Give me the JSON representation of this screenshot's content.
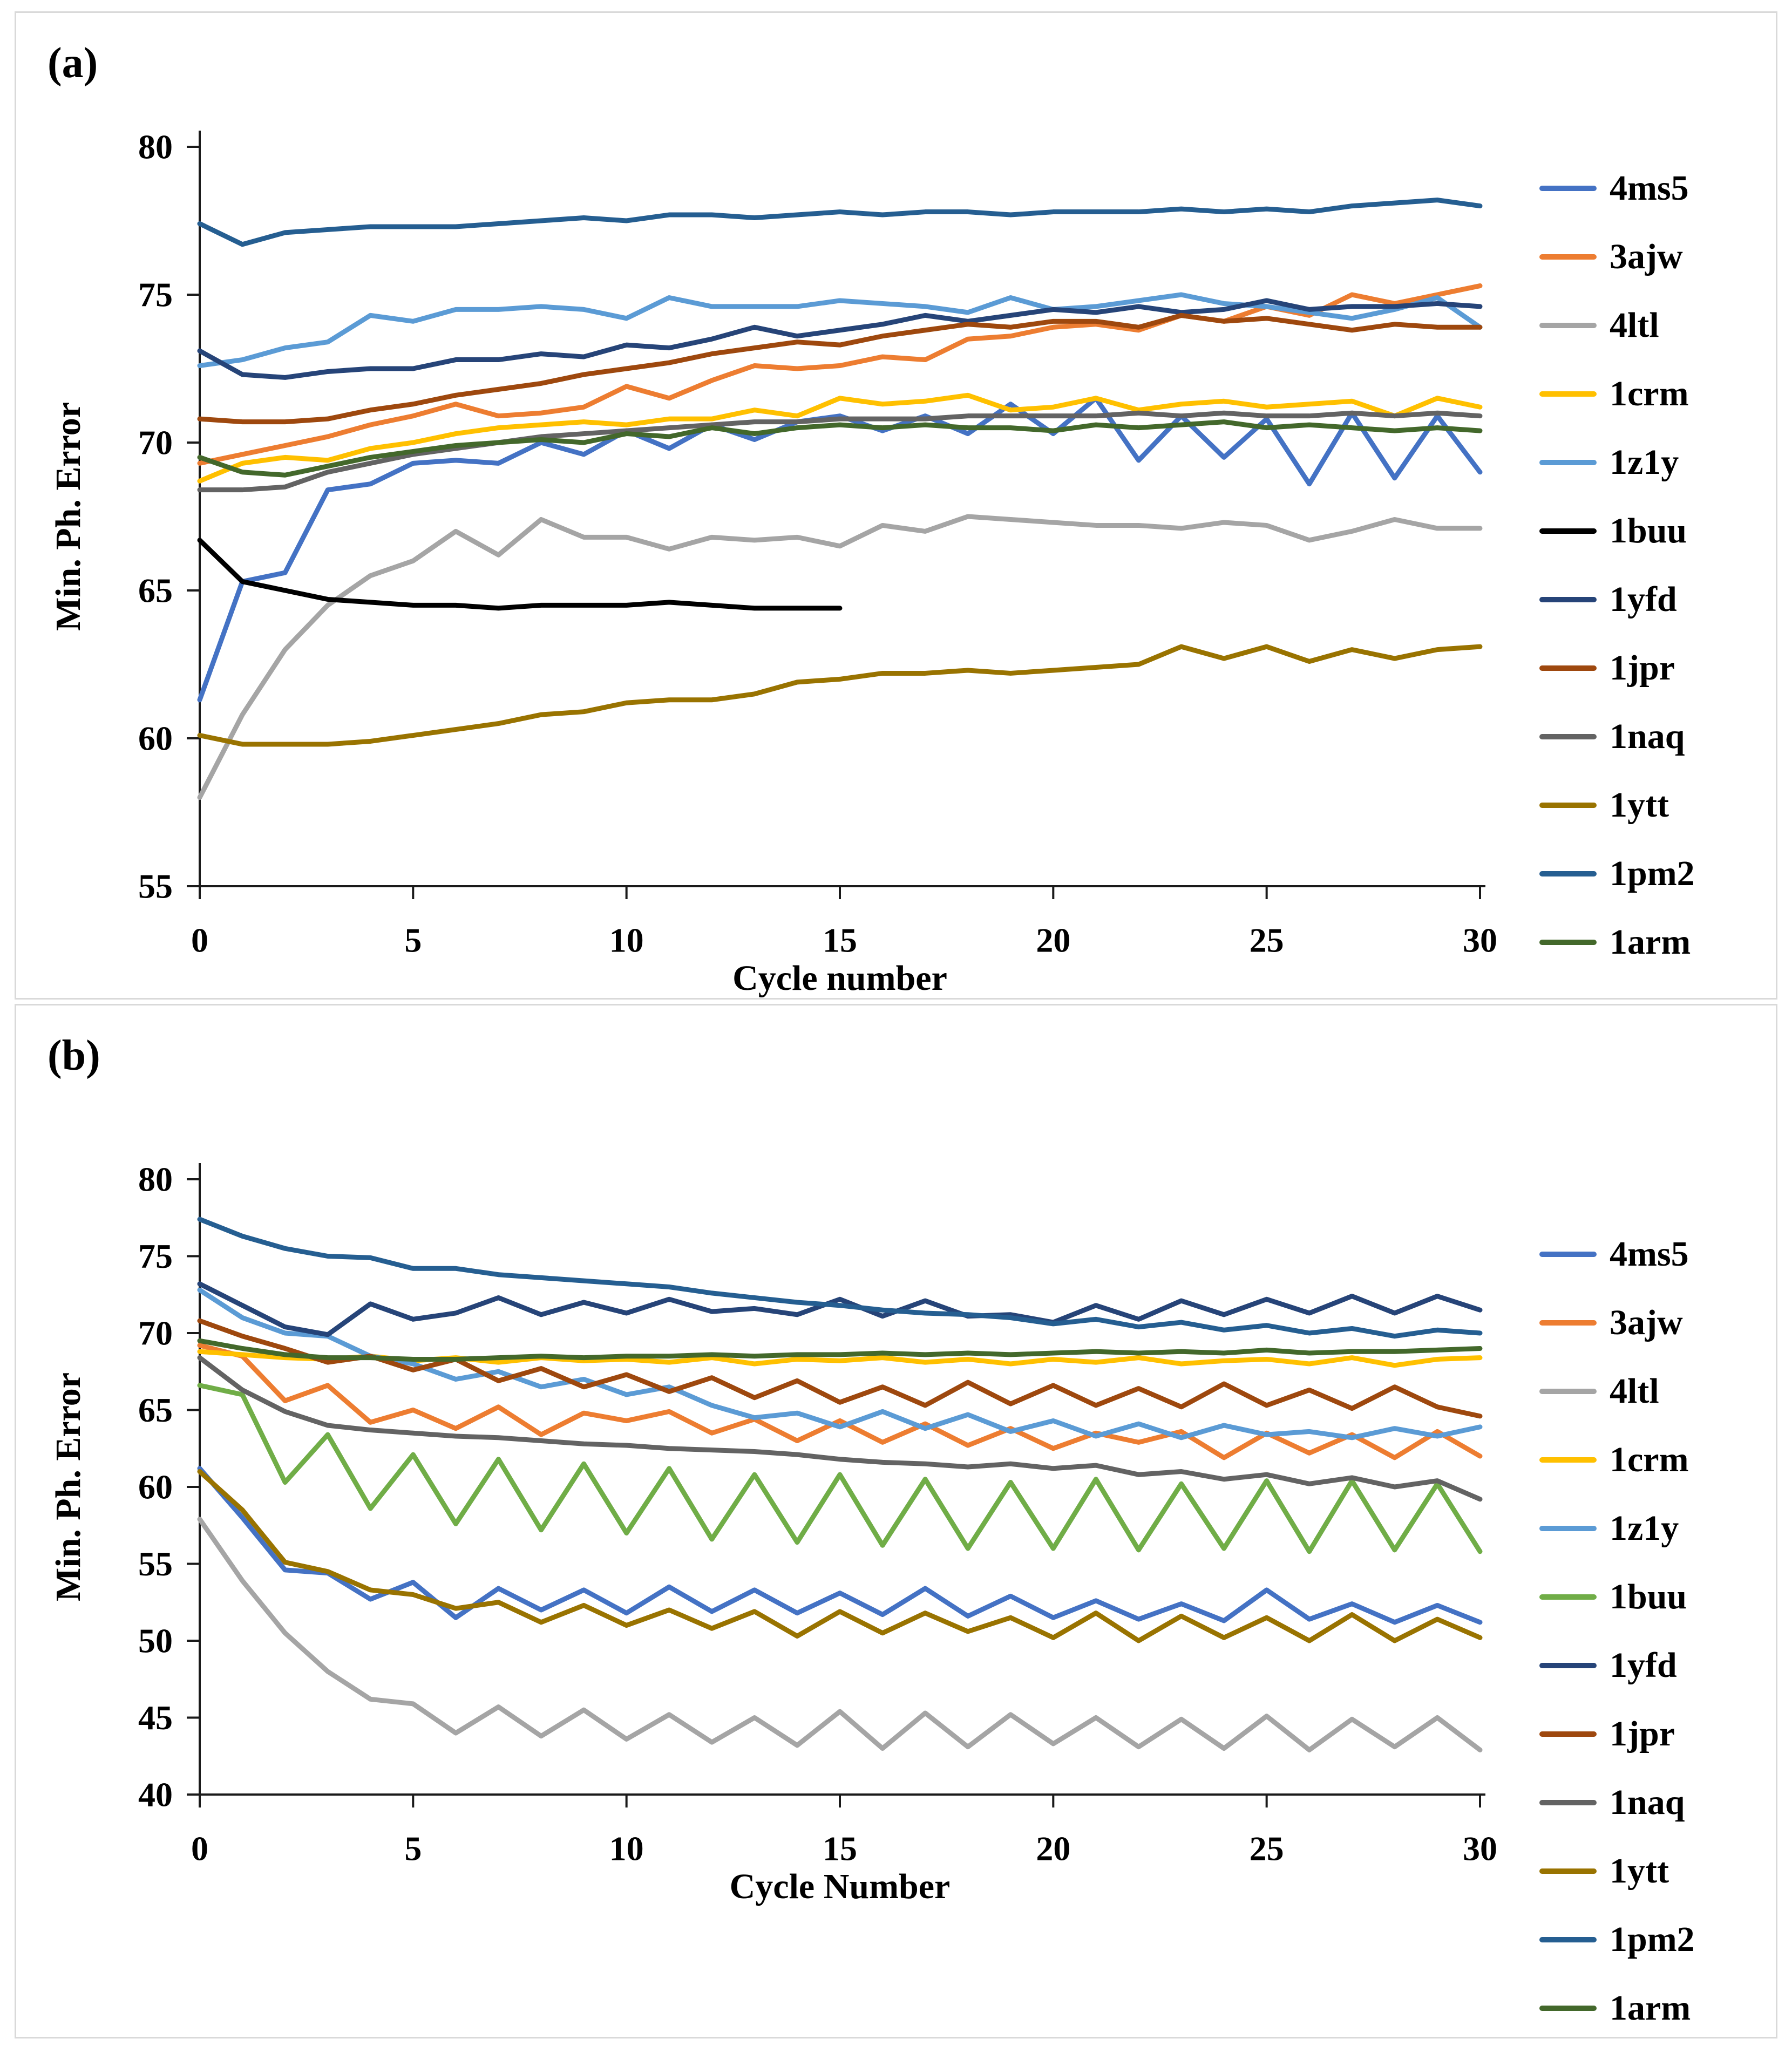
{
  "figure": {
    "background": "#ffffff",
    "panel_border_color": "#d9d9d9",
    "axis_color": "#1a1a1a"
  },
  "chart_data": [
    {
      "id": "a",
      "type": "line",
      "panel_label": "(a)",
      "title": "",
      "xlabel": "Cycle number",
      "ylabel": "Min. Ph. Error",
      "xlim": [
        0,
        30
      ],
      "ylim": [
        55,
        80
      ],
      "xticks": [
        0,
        5,
        10,
        15,
        20,
        25,
        30
      ],
      "yticks": [
        80,
        75,
        70,
        65,
        60,
        55
      ],
      "grid": false,
      "legend_position": "right",
      "x_step": 1,
      "series": [
        {
          "name": "4ms5",
          "color": "#4472C4",
          "values": [
            61.3,
            65.3,
            65.6,
            68.4,
            68.6,
            69.3,
            69.4,
            69.3,
            70.0,
            69.6,
            70.4,
            69.8,
            70.6,
            70.1,
            70.7,
            70.9,
            70.4,
            70.9,
            70.3,
            71.3,
            70.3,
            71.5,
            69.4,
            70.9,
            69.5,
            70.8,
            68.6,
            71.0,
            68.8,
            70.9,
            69.0
          ]
        },
        {
          "name": "3ajw",
          "color": "#ED7D31",
          "values": [
            69.3,
            69.6,
            69.9,
            70.2,
            70.6,
            70.9,
            71.3,
            70.9,
            71.0,
            71.2,
            71.9,
            71.5,
            72.1,
            72.6,
            72.5,
            72.6,
            72.9,
            72.8,
            73.5,
            73.6,
            73.9,
            74.0,
            73.8,
            74.3,
            74.1,
            74.6,
            74.3,
            75.0,
            74.7,
            75.0,
            75.3
          ]
        },
        {
          "name": "4ltl",
          "color": "#A5A5A5",
          "values": [
            58.0,
            60.8,
            63.0,
            64.5,
            65.5,
            66.0,
            67.0,
            66.2,
            67.4,
            66.8,
            66.8,
            66.4,
            66.8,
            66.7,
            66.8,
            66.5,
            67.2,
            67.0,
            67.5,
            67.4,
            67.3,
            67.2,
            67.2,
            67.1,
            67.3,
            67.2,
            66.7,
            67.0,
            67.4,
            67.1,
            67.1
          ]
        },
        {
          "name": "1crm",
          "color": "#FFC000",
          "values": [
            68.7,
            69.3,
            69.5,
            69.4,
            69.8,
            70.0,
            70.3,
            70.5,
            70.6,
            70.7,
            70.6,
            70.8,
            70.8,
            71.1,
            70.9,
            71.5,
            71.3,
            71.4,
            71.6,
            71.1,
            71.2,
            71.5,
            71.1,
            71.3,
            71.4,
            71.2,
            71.3,
            71.4,
            70.9,
            71.5,
            71.2
          ]
        },
        {
          "name": "1z1y",
          "color": "#5B9BD5",
          "values": [
            72.6,
            72.8,
            73.2,
            73.4,
            74.3,
            74.1,
            74.5,
            74.5,
            74.6,
            74.5,
            74.2,
            74.9,
            74.6,
            74.6,
            74.6,
            74.8,
            74.7,
            74.6,
            74.4,
            74.9,
            74.5,
            74.6,
            74.8,
            75.0,
            74.7,
            74.6,
            74.4,
            74.2,
            74.5,
            74.9,
            73.9
          ]
        },
        {
          "name": "1buu",
          "color": "#000000",
          "values": [
            66.7,
            65.3,
            65.0,
            64.7,
            64.6,
            64.5,
            64.5,
            64.4,
            64.5,
            64.5,
            64.5,
            64.6,
            64.5,
            64.4,
            64.4,
            64.4
          ]
        },
        {
          "name": "1yfd",
          "color": "#264478",
          "values": [
            73.1,
            72.3,
            72.2,
            72.4,
            72.5,
            72.5,
            72.8,
            72.8,
            73.0,
            72.9,
            73.3,
            73.2,
            73.5,
            73.9,
            73.6,
            73.8,
            74.0,
            74.3,
            74.1,
            74.3,
            74.5,
            74.4,
            74.6,
            74.4,
            74.5,
            74.8,
            74.5,
            74.6,
            74.6,
            74.7,
            74.6
          ]
        },
        {
          "name": "1jpr",
          "color": "#9E480E",
          "values": [
            70.8,
            70.7,
            70.7,
            70.8,
            71.1,
            71.3,
            71.6,
            71.8,
            72.0,
            72.3,
            72.5,
            72.7,
            73.0,
            73.2,
            73.4,
            73.3,
            73.6,
            73.8,
            74.0,
            73.9,
            74.1,
            74.1,
            73.9,
            74.3,
            74.1,
            74.2,
            74.0,
            73.8,
            74.0,
            73.9,
            73.9
          ]
        },
        {
          "name": "1naq",
          "color": "#636363",
          "values": [
            68.4,
            68.4,
            68.5,
            69.0,
            69.3,
            69.6,
            69.8,
            70.0,
            70.2,
            70.3,
            70.4,
            70.5,
            70.6,
            70.7,
            70.7,
            70.8,
            70.8,
            70.8,
            70.9,
            70.9,
            70.9,
            70.9,
            71.0,
            70.9,
            71.0,
            70.9,
            70.9,
            71.0,
            70.9,
            71.0,
            70.9
          ]
        },
        {
          "name": "1ytt",
          "color": "#997300",
          "values": [
            60.1,
            59.8,
            59.8,
            59.8,
            59.9,
            60.1,
            60.3,
            60.5,
            60.8,
            60.9,
            61.2,
            61.3,
            61.3,
            61.5,
            61.9,
            62.0,
            62.2,
            62.2,
            62.3,
            62.2,
            62.3,
            62.4,
            62.5,
            63.1,
            62.7,
            63.1,
            62.6,
            63.0,
            62.7,
            63.0,
            63.1
          ]
        },
        {
          "name": "1pm2",
          "color": "#255E91",
          "values": [
            77.4,
            76.7,
            77.1,
            77.2,
            77.3,
            77.3,
            77.3,
            77.4,
            77.5,
            77.6,
            77.5,
            77.7,
            77.7,
            77.6,
            77.7,
            77.8,
            77.7,
            77.8,
            77.8,
            77.7,
            77.8,
            77.8,
            77.8,
            77.9,
            77.8,
            77.9,
            77.8,
            78.0,
            78.1,
            78.2,
            78.0
          ]
        },
        {
          "name": "1arm",
          "color": "#43682B",
          "values": [
            69.5,
            69.0,
            68.9,
            69.2,
            69.5,
            69.7,
            69.9,
            70.0,
            70.1,
            70.0,
            70.3,
            70.2,
            70.5,
            70.3,
            70.5,
            70.6,
            70.5,
            70.6,
            70.5,
            70.5,
            70.4,
            70.6,
            70.5,
            70.6,
            70.7,
            70.5,
            70.6,
            70.5,
            70.4,
            70.5,
            70.4
          ]
        }
      ]
    },
    {
      "id": "b",
      "type": "line",
      "panel_label": "(b)",
      "title": "",
      "xlabel": "Cycle Number",
      "ylabel": "Min. Ph. Error",
      "xlim": [
        0,
        30
      ],
      "ylim": [
        40,
        80
      ],
      "xticks": [
        0,
        5,
        10,
        15,
        20,
        25,
        30
      ],
      "yticks": [
        80,
        75,
        70,
        65,
        60,
        55,
        50,
        45,
        40
      ],
      "grid": false,
      "legend_position": "right",
      "x_step": 1,
      "series": [
        {
          "name": "4ms5",
          "color": "#4472C4",
          "values": [
            61.2,
            58.0,
            54.6,
            54.4,
            52.7,
            53.8,
            51.5,
            53.4,
            52.0,
            53.3,
            51.8,
            53.5,
            51.9,
            53.3,
            51.8,
            53.1,
            51.7,
            53.4,
            51.6,
            52.9,
            51.5,
            52.6,
            51.4,
            52.4,
            51.3,
            53.3,
            51.4,
            52.4,
            51.2,
            52.3,
            51.2
          ]
        },
        {
          "name": "3ajw",
          "color": "#ED7D31",
          "values": [
            69.2,
            68.5,
            65.6,
            66.6,
            64.2,
            65.0,
            63.8,
            65.2,
            63.4,
            64.8,
            64.3,
            64.9,
            63.5,
            64.4,
            63.0,
            64.3,
            62.9,
            64.1,
            62.7,
            63.8,
            62.5,
            63.5,
            62.9,
            63.6,
            61.9,
            63.5,
            62.2,
            63.4,
            61.9,
            63.6,
            62.0
          ]
        },
        {
          "name": "4ltl",
          "color": "#A5A5A5",
          "values": [
            57.9,
            53.9,
            50.5,
            48.0,
            46.2,
            45.9,
            44.0,
            45.7,
            43.8,
            45.5,
            43.6,
            45.2,
            43.4,
            45.0,
            43.2,
            45.4,
            43.0,
            45.3,
            43.1,
            45.2,
            43.3,
            45.0,
            43.1,
            44.9,
            43.0,
            45.1,
            42.9,
            44.9,
            43.1,
            45.0,
            42.9
          ]
        },
        {
          "name": "1crm",
          "color": "#FFC000",
          "values": [
            68.8,
            68.6,
            68.4,
            68.3,
            68.5,
            68.2,
            68.4,
            68.1,
            68.4,
            68.2,
            68.3,
            68.1,
            68.4,
            68.0,
            68.3,
            68.2,
            68.4,
            68.1,
            68.3,
            68.0,
            68.3,
            68.1,
            68.4,
            68.0,
            68.2,
            68.3,
            68.0,
            68.4,
            67.9,
            68.3,
            68.4
          ]
        },
        {
          "name": "1z1y",
          "color": "#5B9BD5",
          "values": [
            72.8,
            71.0,
            70.0,
            69.8,
            68.5,
            68.0,
            67.0,
            67.5,
            66.5,
            67.0,
            66.0,
            66.5,
            65.3,
            64.5,
            64.8,
            63.9,
            64.9,
            63.8,
            64.7,
            63.6,
            64.3,
            63.3,
            64.1,
            63.2,
            64.0,
            63.4,
            63.6,
            63.2,
            63.8,
            63.3,
            63.9
          ]
        },
        {
          "name": "1buu",
          "color": "#70AD47",
          "values": [
            66.6,
            66.0,
            60.3,
            63.4,
            58.6,
            62.1,
            57.6,
            61.8,
            57.2,
            61.5,
            57.0,
            61.2,
            56.6,
            60.8,
            56.4,
            60.8,
            56.2,
            60.5,
            56.0,
            60.3,
            56.0,
            60.5,
            55.9,
            60.2,
            56.0,
            60.4,
            55.8,
            60.4,
            55.9,
            60.2,
            55.8
          ]
        },
        {
          "name": "1yfd",
          "color": "#264478",
          "values": [
            73.2,
            71.8,
            70.4,
            69.9,
            71.9,
            70.9,
            71.3,
            72.3,
            71.2,
            72.0,
            71.3,
            72.2,
            71.4,
            71.6,
            71.2,
            72.2,
            71.1,
            72.1,
            71.1,
            71.2,
            70.7,
            71.8,
            70.9,
            72.1,
            71.2,
            72.2,
            71.3,
            72.4,
            71.3,
            72.4,
            71.5
          ]
        },
        {
          "name": "1jpr",
          "color": "#9E480E",
          "values": [
            70.8,
            69.8,
            69.0,
            68.1,
            68.5,
            67.6,
            68.3,
            66.9,
            67.7,
            66.5,
            67.3,
            66.2,
            67.1,
            65.8,
            66.9,
            65.5,
            66.5,
            65.3,
            66.8,
            65.4,
            66.6,
            65.3,
            66.4,
            65.2,
            66.7,
            65.3,
            66.3,
            65.1,
            66.5,
            65.2,
            64.6
          ]
        },
        {
          "name": "1naq",
          "color": "#636363",
          "values": [
            68.4,
            66.3,
            64.9,
            64.0,
            63.7,
            63.5,
            63.3,
            63.2,
            63.0,
            62.8,
            62.7,
            62.5,
            62.4,
            62.3,
            62.1,
            61.8,
            61.6,
            61.5,
            61.3,
            61.5,
            61.2,
            61.4,
            60.8,
            61.0,
            60.5,
            60.8,
            60.2,
            60.6,
            60.0,
            60.4,
            59.2
          ]
        },
        {
          "name": "1ytt",
          "color": "#997300",
          "values": [
            61.0,
            58.5,
            55.1,
            54.5,
            53.3,
            53.0,
            52.1,
            52.5,
            51.2,
            52.3,
            51.0,
            52.0,
            50.8,
            51.9,
            50.3,
            51.9,
            50.5,
            51.8,
            50.6,
            51.5,
            50.2,
            51.8,
            50.0,
            51.6,
            50.2,
            51.5,
            50.0,
            51.7,
            50.0,
            51.4,
            50.2
          ]
        },
        {
          "name": "1pm2",
          "color": "#255E91",
          "values": [
            77.4,
            76.3,
            75.5,
            75.0,
            74.9,
            74.2,
            74.2,
            73.8,
            73.6,
            73.4,
            73.2,
            73.0,
            72.6,
            72.3,
            72.0,
            71.8,
            71.5,
            71.3,
            71.2,
            71.0,
            70.6,
            70.9,
            70.4,
            70.7,
            70.2,
            70.5,
            70.0,
            70.3,
            69.8,
            70.2,
            70.0
          ]
        },
        {
          "name": "1arm",
          "color": "#43682B",
          "values": [
            69.5,
            69.0,
            68.6,
            68.4,
            68.4,
            68.3,
            68.3,
            68.4,
            68.5,
            68.4,
            68.5,
            68.5,
            68.6,
            68.5,
            68.6,
            68.6,
            68.7,
            68.6,
            68.7,
            68.6,
            68.7,
            68.8,
            68.7,
            68.8,
            68.7,
            68.9,
            68.7,
            68.8,
            68.8,
            68.9,
            69.0
          ]
        }
      ]
    }
  ]
}
